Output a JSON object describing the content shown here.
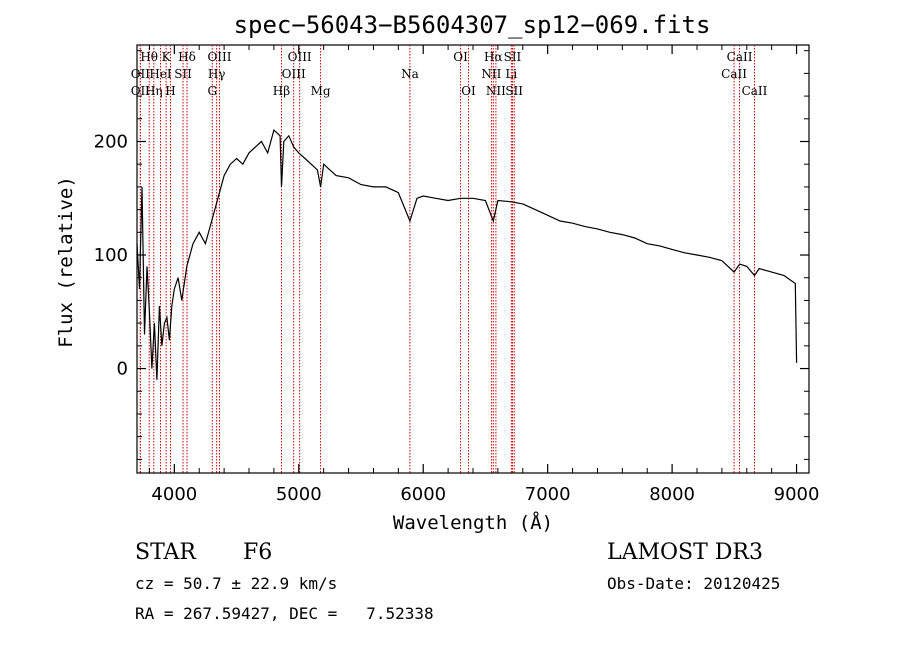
{
  "chart_data": {
    "type": "line",
    "title": "spec−56043−B5604307_sp12−069.fits",
    "xlabel": "Wavelength (Å)",
    "ylabel": "Flux (relative)",
    "xlim": [
      3700,
      9100
    ],
    "ylim": [
      -92,
      285
    ],
    "x_ticks": [
      4000,
      5000,
      6000,
      7000,
      8000,
      9000
    ],
    "y_ticks": [
      0,
      100,
      200
    ],
    "grid": false,
    "line_color": "#000000",
    "marker_color": "#cc0000",
    "series": [
      {
        "name": "flux",
        "x": [
          3700,
          3720,
          3740,
          3760,
          3780,
          3800,
          3820,
          3840,
          3860,
          3880,
          3900,
          3920,
          3940,
          3960,
          3980,
          4000,
          4030,
          4060,
          4100,
          4150,
          4200,
          4250,
          4300,
          4350,
          4400,
          4450,
          4500,
          4550,
          4600,
          4650,
          4700,
          4750,
          4800,
          4850,
          4861,
          4880,
          4920,
          4960,
          5000,
          5050,
          5100,
          5150,
          5175,
          5200,
          5250,
          5300,
          5400,
          5500,
          5600,
          5700,
          5800,
          5893,
          5950,
          6000,
          6100,
          6200,
          6300,
          6400,
          6500,
          6563,
          6600,
          6700,
          6800,
          6900,
          7000,
          7100,
          7200,
          7300,
          7400,
          7500,
          7600,
          7700,
          7800,
          7900,
          8000,
          8100,
          8200,
          8300,
          8400,
          8498,
          8542,
          8600,
          8662,
          8700,
          8800,
          8900,
          8950,
          8990,
          9000
        ],
        "values": [
          110,
          70,
          160,
          30,
          90,
          50,
          0,
          40,
          -10,
          55,
          20,
          40,
          45,
          25,
          55,
          70,
          80,
          60,
          90,
          110,
          120,
          110,
          130,
          150,
          170,
          180,
          185,
          180,
          190,
          195,
          200,
          190,
          210,
          205,
          160,
          200,
          205,
          195,
          190,
          185,
          180,
          175,
          160,
          180,
          175,
          170,
          168,
          162,
          160,
          160,
          155,
          130,
          150,
          152,
          150,
          148,
          150,
          150,
          148,
          130,
          148,
          147,
          145,
          140,
          135,
          130,
          128,
          125,
          123,
          120,
          118,
          115,
          110,
          108,
          105,
          102,
          100,
          98,
          95,
          85,
          92,
          90,
          82,
          88,
          85,
          82,
          78,
          75,
          5
        ]
      }
    ],
    "spectral_lines": [
      {
        "label": "Hθ",
        "wavelength": 3798,
        "row": 1
      },
      {
        "label": "OII",
        "wavelength": 3727,
        "row": 2
      },
      {
        "label": "OII",
        "wavelength": 3727,
        "row": 3
      },
      {
        "label": "HeI",
        "wavelength": 3889,
        "row": 2
      },
      {
        "label": "Hη",
        "wavelength": 3835,
        "row": 3
      },
      {
        "label": "K",
        "wavelength": 3934,
        "row": 1
      },
      {
        "label": "SII",
        "wavelength": 4070,
        "row": 2
      },
      {
        "label": "H",
        "wavelength": 3969,
        "row": 3
      },
      {
        "label": "Hδ",
        "wavelength": 4102,
        "row": 1
      },
      {
        "label": "OIII",
        "wavelength": 4363,
        "row": 1
      },
      {
        "label": "Hγ",
        "wavelength": 4340,
        "row": 2
      },
      {
        "label": "G",
        "wavelength": 4305,
        "row": 3
      },
      {
        "label": "OIII",
        "wavelength": 5007,
        "row": 1
      },
      {
        "label": "OIII",
        "wavelength": 4959,
        "row": 2
      },
      {
        "label": "Hβ",
        "wavelength": 4861,
        "row": 3
      },
      {
        "label": "Mg",
        "wavelength": 5175,
        "row": 3
      },
      {
        "label": "Na",
        "wavelength": 5893,
        "row": 2
      },
      {
        "label": "OI",
        "wavelength": 6300,
        "row": 1
      },
      {
        "label": "OI",
        "wavelength": 6364,
        "row": 3
      },
      {
        "label": "Hα",
        "wavelength": 6563,
        "row": 1
      },
      {
        "label": "NII",
        "wavelength": 6548,
        "row": 2
      },
      {
        "label": "NII",
        "wavelength": 6584,
        "row": 3
      },
      {
        "label": "SII",
        "wavelength": 6717,
        "row": 1
      },
      {
        "label": "Li",
        "wavelength": 6708,
        "row": 2
      },
      {
        "label": "SII",
        "wavelength": 6731,
        "row": 3
      },
      {
        "label": "CaII",
        "wavelength": 8542,
        "row": 1
      },
      {
        "label": "CaII",
        "wavelength": 8498,
        "row": 2
      },
      {
        "label": "CaII",
        "wavelength": 8662,
        "row": 3
      }
    ]
  },
  "info": {
    "object_class": "STAR",
    "subclass": "F6",
    "survey": "LAMOST DR3",
    "redshift_line": "cz = 50.7 ± 22.9 km/s",
    "obs_date_line": "Obs-Date: 20120425",
    "coords_line": "RA = 267.59427, DEC =   7.52338"
  }
}
